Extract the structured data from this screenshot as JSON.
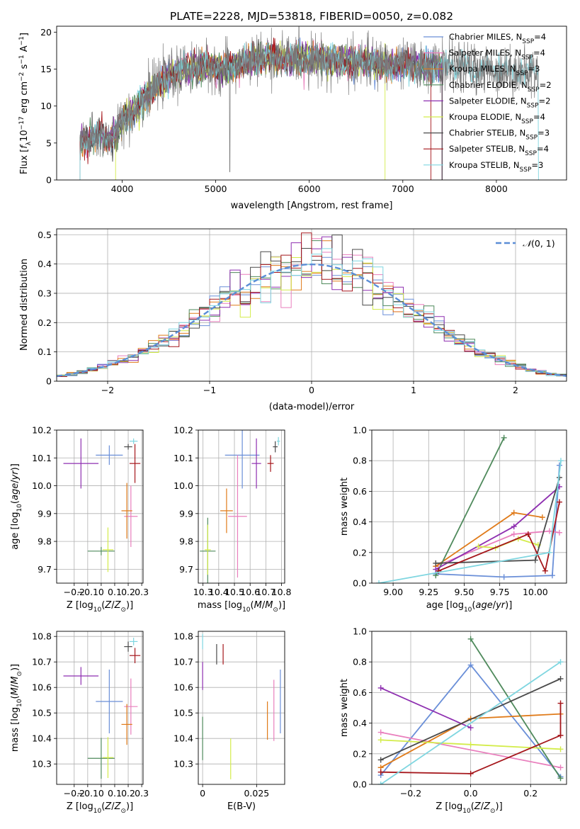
{
  "title": "PLATE=2228, MJD=53818, FIBERID=0050, z=0.082",
  "colors": {
    "Chabrier MILES": "#6a8fd8",
    "Salpeter MILES": "#e97fbd",
    "Kroupa MILES": "#e07b1a",
    "Chabrier ELODIE": "#4f8a5c",
    "Salpeter ELODIE": "#8e2fb0",
    "Kroupa ELODIE": "#d3ec4a",
    "Chabrier STELIB": "#4a4a4a",
    "Salpeter STELIB": "#a5161b",
    "Kroupa STELIB": "#7fd6e0"
  },
  "chart_data": [
    {
      "id": "spectrum",
      "type": "line",
      "xlabel": "wavelength [Angstrom, rest frame]",
      "ylabel": "Flux [f_λ 10^-17 erg cm^-2 s^-1 A^-1]",
      "xlim": [
        3300,
        8750
      ],
      "ylim": [
        0,
        20.8
      ],
      "xticks": [
        4000,
        5000,
        6000,
        7000,
        8000
      ],
      "yticks": [
        0,
        5,
        10,
        15,
        20
      ],
      "grid": false,
      "legend": "upper-right",
      "legend_entries": [
        {
          "name": "Chabrier MILES",
          "nssp": "4"
        },
        {
          "name": "Salpeter MILES",
          "nssp": "4"
        },
        {
          "name": "Kroupa MILES",
          "nssp": "3"
        },
        {
          "name": "Chabrier ELODIE",
          "nssp": "2"
        },
        {
          "name": "Salpeter ELODIE",
          "nssp": "2"
        },
        {
          "name": "Kroupa ELODIE",
          "nssp": "4"
        },
        {
          "name": "Chabrier STELIB",
          "nssp": "3"
        },
        {
          "name": "Salpeter STELIB",
          "nssp": "4"
        },
        {
          "name": "Kroupa STELIB",
          "nssp": "3"
        }
      ],
      "continuum": {
        "x": [
          3550,
          3650,
          3800,
          3900,
          4000,
          4100,
          4300,
          4500,
          4700,
          4900,
          5100,
          5300,
          5500,
          5800,
          6100,
          6400,
          6700,
          7000,
          7300,
          7500,
          7800,
          8100,
          8400
        ],
        "y": [
          5,
          5.5,
          6,
          5.5,
          8,
          9,
          12,
          14,
          15,
          15.5,
          15,
          15.8,
          16.5,
          16.5,
          16.3,
          16,
          15.8,
          15.6,
          15.5,
          15.3,
          15,
          14.8,
          14.5
        ]
      },
      "observed_range": [
        3550,
        8450
      ],
      "model_range": [
        3550,
        7420
      ]
    },
    {
      "id": "residual-histogram",
      "type": "histogram",
      "xlabel": "(data-model)/error",
      "ylabel": "Normed distribution",
      "xlim": [
        -2.5,
        2.5
      ],
      "ylim": [
        0,
        0.52
      ],
      "xticks": [
        -2,
        -1,
        0,
        1,
        2
      ],
      "yticks": [
        0,
        0.1,
        0.2,
        0.3,
        0.4,
        0.5
      ],
      "grid": true,
      "bin_width": 0.1,
      "reference": {
        "label": "N(0,1)",
        "style": "dashed",
        "color": "#5b8ed6"
      },
      "legend": "upper-right"
    },
    {
      "id": "age-vs-z",
      "type": "scatter",
      "xlabel": "Z [log10(Z/Z_sun)]",
      "ylabel": "age [log10(age/yr)]",
      "xlim": [
        -0.33,
        0.31
      ],
      "ylim": [
        9.65,
        10.2
      ],
      "xticks": [
        -0.2,
        -0.1,
        0.0,
        0.1,
        0.2,
        0.3
      ],
      "yticks": [
        9.7,
        9.8,
        9.9,
        10.0,
        10.1,
        10.2
      ],
      "grid": true,
      "points": [
        {
          "model": "Chabrier MILES",
          "x": 0.06,
          "y": 10.11,
          "xerr": 0.1,
          "yerr": 0.035
        },
        {
          "model": "Salpeter MILES",
          "x": 0.22,
          "y": 9.89,
          "xerr": 0.05,
          "yerr": 0.11
        },
        {
          "model": "Kroupa MILES",
          "x": 0.19,
          "y": 9.91,
          "xerr": 0.04,
          "yerr": 0.1
        },
        {
          "model": "Chabrier ELODIE",
          "x": 0.0,
          "y": 9.765,
          "xerr": 0.1,
          "yerr": 0.015
        },
        {
          "model": "Salpeter ELODIE",
          "x": -0.15,
          "y": 10.08,
          "xerr": 0.13,
          "yerr": 0.09
        },
        {
          "model": "Kroupa ELODIE",
          "x": 0.05,
          "y": 9.77,
          "xerr": 0.04,
          "yerr": 0.08
        },
        {
          "model": "Chabrier STELIB",
          "x": 0.2,
          "y": 10.14,
          "xerr": 0.03,
          "yerr": 0.01
        },
        {
          "model": "Salpeter STELIB",
          "x": 0.25,
          "y": 10.08,
          "xerr": 0.04,
          "yerr": 0.07
        },
        {
          "model": "Kroupa STELIB",
          "x": 0.24,
          "y": 10.16,
          "xerr": 0.03,
          "yerr": 0.01
        }
      ]
    },
    {
      "id": "age-vs-mass",
      "type": "scatter",
      "xlabel": "mass [log10(M/M_sun)]",
      "ylabel": "",
      "xlim": [
        10.27,
        10.82
      ],
      "ylim": [
        9.65,
        10.2
      ],
      "xticks": [
        10.3,
        10.4,
        10.5,
        10.6,
        10.7,
        10.8
      ],
      "yticks": [
        9.7,
        9.8,
        9.9,
        10.0,
        10.1,
        10.2
      ],
      "grid": true,
      "points": [
        {
          "model": "Chabrier MILES",
          "x": 10.55,
          "y": 10.11,
          "xerr": 0.11,
          "yerr": 0.12
        },
        {
          "model": "Salpeter MILES",
          "x": 10.52,
          "y": 9.89,
          "xerr": 0.06,
          "yerr": 0.22
        },
        {
          "model": "Kroupa MILES",
          "x": 10.45,
          "y": 9.91,
          "xerr": 0.04,
          "yerr": 0.08
        },
        {
          "model": "Chabrier ELODIE",
          "x": 10.33,
          "y": 9.765,
          "xerr": 0.05,
          "yerr": 0.12
        },
        {
          "model": "Salpeter ELODIE",
          "x": 10.64,
          "y": 10.08,
          "xerr": 0.03,
          "yerr": 0.09
        },
        {
          "model": "Kroupa ELODIE",
          "x": 10.33,
          "y": 9.77,
          "xerr": 0.02,
          "yerr": 0.09
        },
        {
          "model": "Chabrier STELIB",
          "x": 10.76,
          "y": 10.14,
          "xerr": 0.015,
          "yerr": 0.02
        },
        {
          "model": "Salpeter STELIB",
          "x": 10.73,
          "y": 10.08,
          "xerr": 0.02,
          "yerr": 0.03
        },
        {
          "model": "Kroupa STELIB",
          "x": 10.78,
          "y": 10.16,
          "xerr": 0.01,
          "yerr": 0.015
        }
      ]
    },
    {
      "id": "mass-weight-vs-age",
      "type": "line",
      "xlabel": "age [log10(age/yr)]",
      "ylabel": "mass weight",
      "xlim": [
        8.85,
        10.22
      ],
      "ylim": [
        0,
        1.0
      ],
      "xticks": [
        9.0,
        9.25,
        9.5,
        9.75,
        10.0
      ],
      "yticks": [
        0.0,
        0.2,
        0.4,
        0.6,
        0.8,
        1.0
      ],
      "grid": true,
      "series": [
        {
          "name": "Chabrier MILES",
          "x": [
            9.3,
            9.78,
            10.12,
            10.17
          ],
          "y": [
            0.06,
            0.04,
            0.05,
            0.77
          ]
        },
        {
          "name": "Salpeter MILES",
          "x": [
            9.3,
            9.85,
            10.1,
            10.17
          ],
          "y": [
            0.11,
            0.32,
            0.34,
            0.33
          ]
        },
        {
          "name": "Kroupa MILES",
          "x": [
            9.3,
            9.85,
            10.05
          ],
          "y": [
            0.11,
            0.46,
            0.43
          ]
        },
        {
          "name": "Chabrier ELODIE",
          "x": [
            9.3,
            9.78
          ],
          "y": [
            0.05,
            0.95
          ]
        },
        {
          "name": "Salpeter ELODIE",
          "x": [
            9.3,
            9.85,
            10.17
          ],
          "y": [
            0.09,
            0.37,
            0.63
          ]
        },
        {
          "name": "Kroupa ELODIE",
          "x": [
            9.6,
            9.72,
            9.88,
            10.02
          ],
          "y": [
            0.24,
            0.23,
            0.29,
            0.25
          ]
        },
        {
          "name": "Chabrier STELIB",
          "x": [
            9.3,
            10.0,
            10.17
          ],
          "y": [
            0.13,
            0.15,
            0.69
          ]
        },
        {
          "name": "Salpeter STELIB",
          "x": [
            9.32,
            9.95,
            10.07,
            10.17
          ],
          "y": [
            0.08,
            0.32,
            0.08,
            0.53
          ]
        },
        {
          "name": "Kroupa STELIB",
          "x": [
            8.9,
            10.1,
            10.18
          ],
          "y": [
            0.0,
            0.2,
            0.8
          ]
        }
      ]
    },
    {
      "id": "mass-vs-z",
      "type": "scatter",
      "xlabel": "Z [log10(Z/Z_sun)]",
      "ylabel": "mass [log10(M/M_sun)]",
      "xlim": [
        -0.33,
        0.31
      ],
      "ylim": [
        10.22,
        10.82
      ],
      "xticks": [
        -0.2,
        -0.1,
        0.0,
        0.1,
        0.2,
        0.3
      ],
      "yticks": [
        10.3,
        10.4,
        10.5,
        10.6,
        10.7,
        10.8
      ],
      "grid": true,
      "points": [
        {
          "model": "Chabrier MILES",
          "x": 0.06,
          "y": 10.545,
          "xerr": 0.1,
          "yerr": 0.125
        },
        {
          "model": "Salpeter MILES",
          "x": 0.22,
          "y": 10.525,
          "xerr": 0.05,
          "yerr": 0.11
        },
        {
          "model": "Kroupa MILES",
          "x": 0.19,
          "y": 10.455,
          "xerr": 0.04,
          "yerr": 0.08
        },
        {
          "model": "Chabrier ELODIE",
          "x": 0.0,
          "y": 10.322,
          "xerr": 0.1,
          "yerr": 0.08
        },
        {
          "model": "Salpeter ELODIE",
          "x": -0.15,
          "y": 10.645,
          "xerr": 0.13,
          "yerr": 0.035
        },
        {
          "model": "Kroupa ELODIE",
          "x": 0.05,
          "y": 10.325,
          "xerr": 0.04,
          "yerr": 0.08
        },
        {
          "model": "Chabrier STELIB",
          "x": 0.2,
          "y": 10.76,
          "xerr": 0.03,
          "yerr": 0.02
        },
        {
          "model": "Salpeter STELIB",
          "x": 0.25,
          "y": 10.725,
          "xerr": 0.04,
          "yerr": 0.03
        },
        {
          "model": "Kroupa STELIB",
          "x": 0.24,
          "y": 10.78,
          "xerr": 0.03,
          "yerr": 0.015
        }
      ]
    },
    {
      "id": "mass-vs-ebv",
      "type": "scatter",
      "xlabel": "E(B-V)",
      "ylabel": "",
      "xlim": [
        -0.002,
        0.038
      ],
      "ylim": [
        10.22,
        10.82
      ],
      "xticks": [
        0.0,
        0.025
      ],
      "yticks": [
        10.3,
        10.4,
        10.5,
        10.6,
        10.7,
        10.8
      ],
      "grid": true,
      "points": [
        {
          "model": "Chabrier MILES",
          "x": 0.036,
          "y": 10.545,
          "xerr": 0,
          "yerr": 0.125
        },
        {
          "model": "Salpeter MILES",
          "x": 0.033,
          "y": 10.51,
          "xerr": 0,
          "yerr": 0.12
        },
        {
          "model": "Kroupa MILES",
          "x": 0.03,
          "y": 10.47,
          "xerr": 0,
          "yerr": 0.075
        },
        {
          "model": "Chabrier ELODIE",
          "x": 0.0,
          "y": 10.4,
          "xerr": 0,
          "yerr": 0.085
        },
        {
          "model": "Salpeter ELODIE",
          "x": 0.0,
          "y": 10.645,
          "xerr": 0,
          "yerr": 0.055
        },
        {
          "model": "Kroupa ELODIE",
          "x": 0.013,
          "y": 10.32,
          "xerr": 0,
          "yerr": 0.08
        },
        {
          "model": "Chabrier STELIB",
          "x": 0.0065,
          "y": 10.73,
          "xerr": 0,
          "yerr": 0.04
        },
        {
          "model": "Salpeter STELIB",
          "x": 0.0095,
          "y": 10.73,
          "xerr": 0,
          "yerr": 0.04
        },
        {
          "model": "Kroupa STELIB",
          "x": 0.0,
          "y": 10.78,
          "xerr": 0,
          "yerr": 0.03
        }
      ]
    },
    {
      "id": "mass-weight-vs-z",
      "type": "line",
      "xlabel": "Z [log10(Z/Z_sun)]",
      "ylabel": "mass weight",
      "xlim": [
        -0.33,
        0.32
      ],
      "ylim": [
        0,
        1.0
      ],
      "xticks": [
        -0.2,
        0.0,
        0.2
      ],
      "yticks": [
        0.0,
        0.2,
        0.4,
        0.6,
        0.8,
        1.0
      ],
      "grid": true,
      "series": [
        {
          "name": "Chabrier MILES",
          "x": [
            -0.3,
            0.0,
            0.3
          ],
          "y": [
            0.06,
            0.78,
            0.05
          ]
        },
        {
          "name": "Salpeter MILES",
          "x": [
            -0.3,
            0.3
          ],
          "y": [
            0.34,
            0.11
          ]
        },
        {
          "name": "Kroupa MILES",
          "x": [
            -0.3,
            0.0,
            0.3
          ],
          "y": [
            0.11,
            0.43,
            0.46
          ]
        },
        {
          "name": "Chabrier ELODIE",
          "x": [
            0.0,
            0.3
          ],
          "y": [
            0.95,
            0.04
          ]
        },
        {
          "name": "Salpeter ELODIE",
          "x": [
            -0.3,
            0.0
          ],
          "y": [
            0.63,
            0.37
          ]
        },
        {
          "name": "Kroupa ELODIE",
          "x": [
            -0.3,
            0.0,
            0.3
          ],
          "y": [
            0.29,
            0.26,
            0.23
          ]
        },
        {
          "name": "Chabrier STELIB",
          "x": [
            -0.3,
            0.3
          ],
          "y": [
            0.16,
            0.69
          ]
        },
        {
          "name": "Salpeter STELIB",
          "x": [
            -0.3,
            0.0,
            0.3,
            0.3
          ],
          "y": [
            0.08,
            0.07,
            0.32,
            0.53
          ]
        },
        {
          "name": "Kroupa STELIB",
          "x": [
            -0.3,
            0.3
          ],
          "y": [
            0.0,
            0.8
          ]
        }
      ]
    }
  ]
}
